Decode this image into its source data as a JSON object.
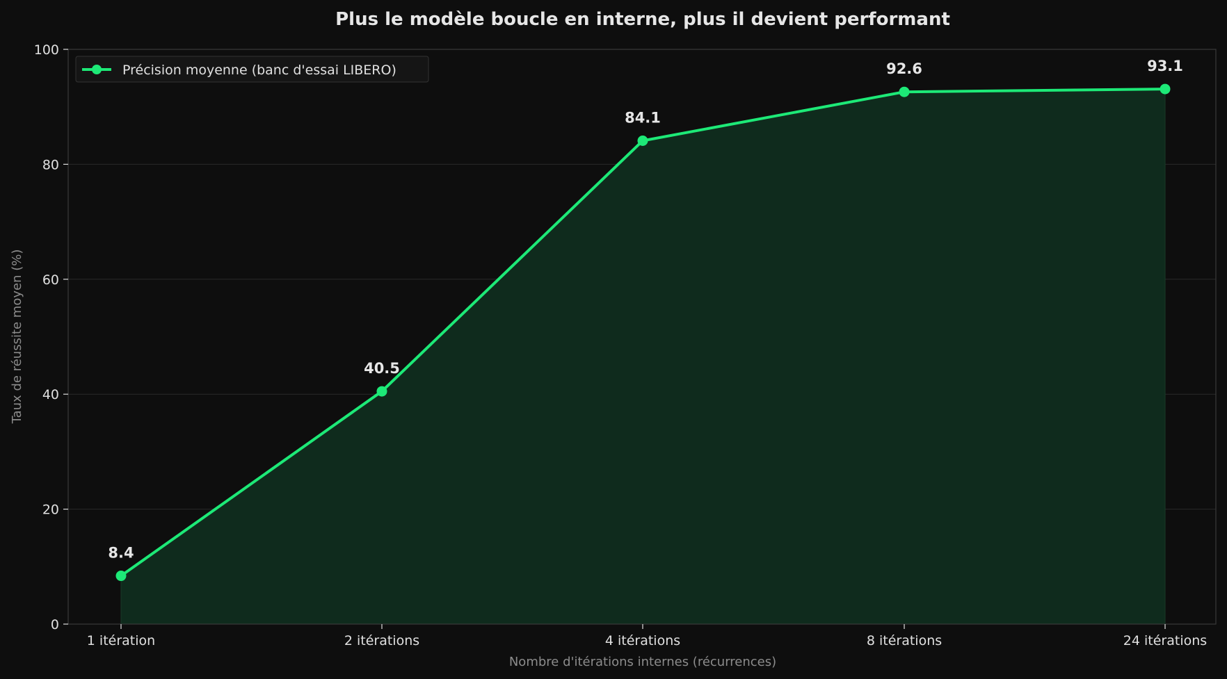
{
  "chart_data": {
    "type": "line",
    "title": "Plus le modèle boucle en interne, plus il devient performant",
    "xlabel": "Nombre d'itérations internes (récurrences)",
    "ylabel": "Taux de réussite moyen (%)",
    "categories": [
      "1 itération",
      "2 itérations",
      "4 itérations",
      "8 itérations",
      "24 itérations"
    ],
    "series": [
      {
        "name": "Précision moyenne (banc d'essai LIBERO)",
        "values": [
          8.4,
          40.5,
          84.1,
          92.6,
          93.1
        ],
        "data_labels": [
          "8.4",
          "40.5",
          "84.1",
          "92.6",
          "93.1"
        ]
      }
    ],
    "ylim": [
      0,
      100
    ],
    "yticks": [
      0,
      20,
      40,
      60,
      80,
      100
    ],
    "ytick_labels": [
      "0",
      "20",
      "40",
      "60",
      "80",
      "100"
    ],
    "grid": "horizontal",
    "legend_position": "top-left",
    "area_fill": true
  },
  "colors": {
    "background": "#0e0e0e",
    "line": "#1de977",
    "area_fill": "#0f2b1d",
    "grid": "#2a2a2a",
    "axis": "#3a3a3a",
    "title_text": "#e6e6e6",
    "tick_text": "#e0e0e0",
    "axis_label_text": "#8c8c8c",
    "legend_background": "#151515",
    "legend_border": "#333333"
  }
}
